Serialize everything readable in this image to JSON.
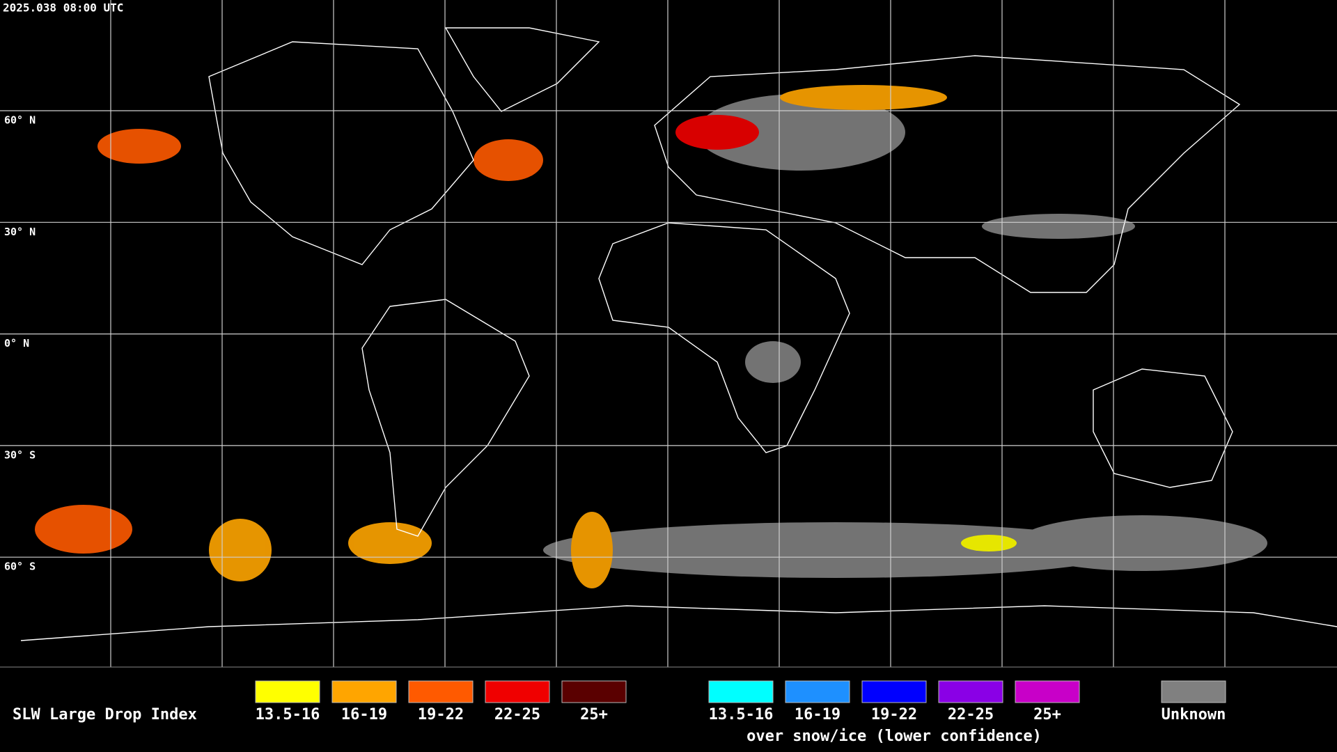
{
  "header": {
    "timestamp": "2025.038 08:00 UTC"
  },
  "map": {
    "latitude_labels": [
      "60° N",
      "30° N",
      "0° N",
      "30° S",
      "60° S"
    ]
  },
  "legend": {
    "title": "SLW Large Drop Index",
    "groups": [
      {
        "items": [
          {
            "label": "13.5-16",
            "color": "#ffff00"
          },
          {
            "label": "16-19",
            "color": "#ffa500"
          },
          {
            "label": "19-22",
            "color": "#ff5a00"
          },
          {
            "label": "22-25",
            "color": "#f00000"
          },
          {
            "label": "25+",
            "color": "#5a0000"
          }
        ]
      },
      {
        "items": [
          {
            "label": "13.5-16",
            "color": "#00ffff"
          },
          {
            "label": "16-19",
            "color": "#1e90ff"
          },
          {
            "label": "19-22",
            "color": "#0000ff"
          },
          {
            "label": "22-25",
            "color": "#8a00e6"
          },
          {
            "label": "25+",
            "color": "#c800c8"
          }
        ],
        "caption": "over snow/ice (lower confidence)"
      },
      {
        "items": [
          {
            "label": "Unknown",
            "color": "#808080"
          }
        ]
      }
    ]
  }
}
